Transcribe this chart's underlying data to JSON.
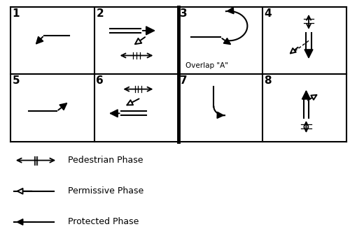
{
  "cell_labels": [
    "1",
    "2",
    "3",
    "4",
    "5",
    "6",
    "7",
    "8"
  ],
  "overlap_text": "Overlap \"A\"",
  "legend_items": [
    {
      "label": "Pedestrian Phase"
    },
    {
      "label": "Permissive Phase"
    },
    {
      "label": "Protected Phase"
    }
  ],
  "bg_color": "#ffffff"
}
